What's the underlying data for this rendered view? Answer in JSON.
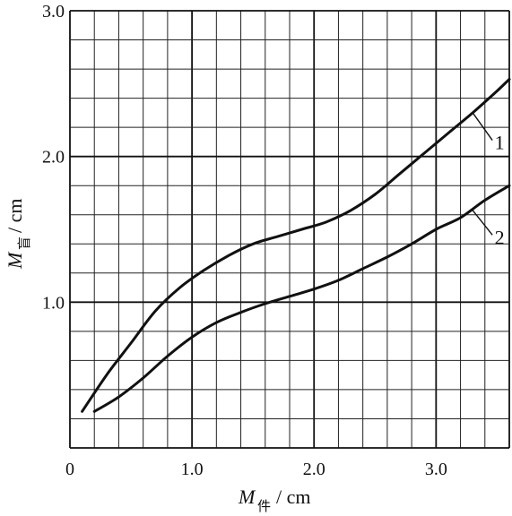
{
  "chart_data": {
    "type": "line",
    "xlabel": {
      "main": "M",
      "sub": "件",
      "unit": "/ cm"
    },
    "ylabel": {
      "main": "M",
      "sub": "盲",
      "unit": "/ cm"
    },
    "xlim": [
      0,
      3.6
    ],
    "ylim": [
      0,
      3.0
    ],
    "x_tick_labels": [
      {
        "value": 0,
        "label": "0"
      },
      {
        "value": 1.0,
        "label": "1.0"
      },
      {
        "value": 2.0,
        "label": "2.0"
      },
      {
        "value": 3.0,
        "label": "3.0"
      }
    ],
    "y_tick_labels": [
      {
        "value": 1.0,
        "label": "1.0"
      },
      {
        "value": 2.0,
        "label": "2.0"
      },
      {
        "value": 3.0,
        "label": "3.0"
      }
    ],
    "grid": true,
    "series": [
      {
        "name": "1",
        "points": [
          [
            0.1,
            0.25
          ],
          [
            0.3,
            0.5
          ],
          [
            0.5,
            0.72
          ],
          [
            0.7,
            0.94
          ],
          [
            0.9,
            1.1
          ],
          [
            1.1,
            1.22
          ],
          [
            1.3,
            1.32
          ],
          [
            1.5,
            1.4
          ],
          [
            1.7,
            1.45
          ],
          [
            1.9,
            1.5
          ],
          [
            2.1,
            1.55
          ],
          [
            2.3,
            1.63
          ],
          [
            2.5,
            1.74
          ],
          [
            2.7,
            1.88
          ],
          [
            2.9,
            2.02
          ],
          [
            3.1,
            2.16
          ],
          [
            3.3,
            2.3
          ],
          [
            3.5,
            2.45
          ],
          [
            3.6,
            2.53
          ]
        ]
      },
      {
        "name": "2",
        "points": [
          [
            0.2,
            0.25
          ],
          [
            0.4,
            0.35
          ],
          [
            0.6,
            0.48
          ],
          [
            0.8,
            0.63
          ],
          [
            1.0,
            0.76
          ],
          [
            1.2,
            0.86
          ],
          [
            1.4,
            0.93
          ],
          [
            1.6,
            0.99
          ],
          [
            1.8,
            1.04
          ],
          [
            2.0,
            1.09
          ],
          [
            2.2,
            1.15
          ],
          [
            2.4,
            1.23
          ],
          [
            2.6,
            1.31
          ],
          [
            2.8,
            1.4
          ],
          [
            3.0,
            1.5
          ],
          [
            3.2,
            1.58
          ],
          [
            3.4,
            1.7
          ],
          [
            3.6,
            1.8
          ]
        ]
      }
    ],
    "curve_labels": [
      {
        "text": "1",
        "series": "1"
      },
      {
        "text": "2",
        "series": "2"
      }
    ]
  }
}
